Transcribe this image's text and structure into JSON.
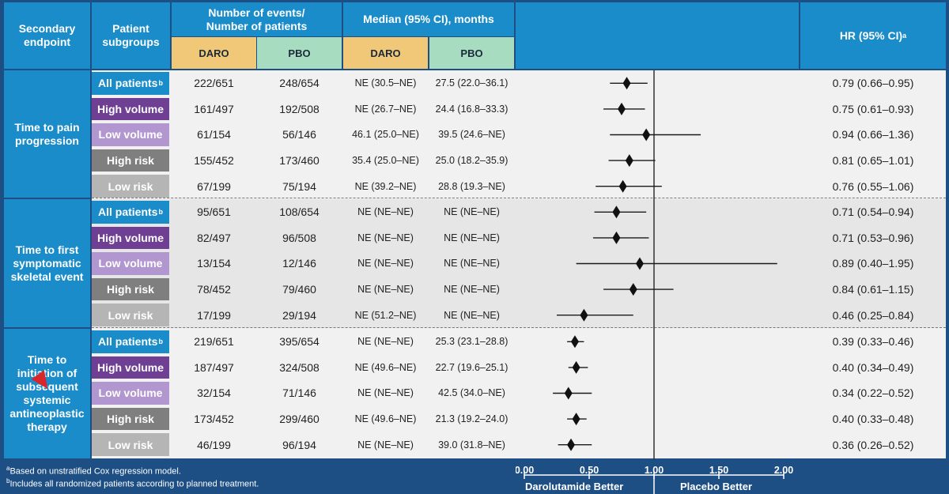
{
  "header": {
    "secondary_endpoint": "Secondary endpoint",
    "patient_subgroups": "Patient subgroups",
    "events_header": "Number of events/ Number of patients",
    "median_header": "Median (95% CI), months",
    "hr_header": "HR (95% CI)",
    "hr_footnote_mark": "a",
    "daro": "DARO",
    "pbo": "PBO"
  },
  "colors": {
    "header_blue": "#1a8cc9",
    "daro_yellow": "#f1c878",
    "pbo_green": "#a8dcc0",
    "all_patients": "#1a8cc9",
    "high_volume": "#6e3f92",
    "low_volume": "#b296d0",
    "high_risk": "#7f7f7f",
    "low_risk": "#b5b5b5"
  },
  "endpoints": [
    {
      "label": "Time to pain progression",
      "rows": [
        {
          "subgroup": "All patients",
          "sup": "b",
          "daro_events": "222/651",
          "pbo_events": "248/654",
          "daro_median": "NE (30.5–NE)",
          "pbo_median": "27.5 (22.0–36.1)",
          "hr_text": "0.79 (0.66–0.95)"
        },
        {
          "subgroup": "High volume",
          "sup": "",
          "daro_events": "161/497",
          "pbo_events": "192/508",
          "daro_median": "NE (26.7–NE)",
          "pbo_median": "24.4 (16.8–33.3)",
          "hr_text": "0.75 (0.61–0.93)"
        },
        {
          "subgroup": "Low volume",
          "sup": "",
          "daro_events": "61/154",
          "pbo_events": "56/146",
          "daro_median": "46.1 (25.0–NE)",
          "pbo_median": "39.5 (24.6–NE)",
          "hr_text": "0.94 (0.66–1.36)"
        },
        {
          "subgroup": "High risk",
          "sup": "",
          "daro_events": "155/452",
          "pbo_events": "173/460",
          "daro_median": "35.4 (25.0–NE)",
          "pbo_median": "25.0 (18.2–35.9)",
          "hr_text": "0.81 (0.65–1.01)"
        },
        {
          "subgroup": "Low risk",
          "sup": "",
          "daro_events": "67/199",
          "pbo_events": "75/194",
          "daro_median": "NE (39.2–NE)",
          "pbo_median": "28.8 (19.3–NE)",
          "hr_text": "0.76 (0.55–1.06)"
        }
      ]
    },
    {
      "label": "Time to first symptomatic skeletal event",
      "rows": [
        {
          "subgroup": "All patients",
          "sup": "b",
          "daro_events": "95/651",
          "pbo_events": "108/654",
          "daro_median": "NE (NE–NE)",
          "pbo_median": "NE (NE–NE)",
          "hr_text": "0.71 (0.54–0.94)"
        },
        {
          "subgroup": "High volume",
          "sup": "",
          "daro_events": "82/497",
          "pbo_events": "96/508",
          "daro_median": "NE (NE–NE)",
          "pbo_median": "NE (NE–NE)",
          "hr_text": "0.71 (0.53–0.96)"
        },
        {
          "subgroup": "Low volume",
          "sup": "",
          "daro_events": "13/154",
          "pbo_events": "12/146",
          "daro_median": "NE (NE–NE)",
          "pbo_median": "NE (NE–NE)",
          "hr_text": "0.89 (0.40–1.95)"
        },
        {
          "subgroup": "High risk",
          "sup": "",
          "daro_events": "78/452",
          "pbo_events": "79/460",
          "daro_median": "NE (NE–NE)",
          "pbo_median": "NE (NE–NE)",
          "hr_text": "0.84 (0.61–1.15)"
        },
        {
          "subgroup": "Low risk",
          "sup": "",
          "daro_events": "17/199",
          "pbo_events": "29/194",
          "daro_median": "NE (51.2–NE)",
          "pbo_median": "NE (NE–NE)",
          "hr_text": "0.46 (0.25–0.84)"
        }
      ]
    },
    {
      "label": "Time to initiation of subsequent systemic antineoplastic therapy",
      "rows": [
        {
          "subgroup": "All patients",
          "sup": "b",
          "daro_events": "219/651",
          "pbo_events": "395/654",
          "daro_median": "NE (NE–NE)",
          "pbo_median": "25.3 (23.1–28.8)",
          "hr_text": "0.39 (0.33–0.46)"
        },
        {
          "subgroup": "High volume",
          "sup": "",
          "daro_events": "187/497",
          "pbo_events": "324/508",
          "daro_median": "NE (49.6–NE)",
          "pbo_median": "22.7 (19.6–25.1)",
          "hr_text": "0.40 (0.34–0.49)"
        },
        {
          "subgroup": "Low volume",
          "sup": "",
          "daro_events": "32/154",
          "pbo_events": "71/146",
          "daro_median": "NE (NE–NE)",
          "pbo_median": "42.5 (34.0–NE)",
          "hr_text": "0.34 (0.22–0.52)"
        },
        {
          "subgroup": "High risk",
          "sup": "",
          "daro_events": "173/452",
          "pbo_events": "299/460",
          "daro_median": "NE (49.6–NE)",
          "pbo_median": "21.3 (19.2–24.0)",
          "hr_text": "0.40 (0.33–0.48)"
        },
        {
          "subgroup": "Low risk",
          "sup": "",
          "daro_events": "46/199",
          "pbo_events": "96/194",
          "daro_median": "NE (NE–NE)",
          "pbo_median": "39.0 (31.8–NE)",
          "hr_text": "0.36 (0.26–0.52)"
        }
      ]
    }
  ],
  "footnotes": {
    "a_mark": "a",
    "a_text": "Based on unstratified Cox regression model.",
    "b_mark": "b",
    "b_text": "Includes all randomized patients according to planned treatment."
  },
  "axis": {
    "left_label": "Darolutamide Better",
    "right_label": "Placebo Better"
  },
  "chart_data": {
    "type": "scatter",
    "subtype": "forest-plot",
    "xlim": [
      0,
      2
    ],
    "xticks": [
      "0.00",
      "0.50",
      "1.00",
      "1.50",
      "2.00"
    ],
    "reference_line": 1.0,
    "points": [
      {
        "hr": 0.79,
        "lo": 0.66,
        "hi": 0.95
      },
      {
        "hr": 0.75,
        "lo": 0.61,
        "hi": 0.93
      },
      {
        "hr": 0.94,
        "lo": 0.66,
        "hi": 1.36
      },
      {
        "hr": 0.81,
        "lo": 0.65,
        "hi": 1.01
      },
      {
        "hr": 0.76,
        "lo": 0.55,
        "hi": 1.06
      },
      {
        "hr": 0.71,
        "lo": 0.54,
        "hi": 0.94
      },
      {
        "hr": 0.71,
        "lo": 0.53,
        "hi": 0.96
      },
      {
        "hr": 0.89,
        "lo": 0.4,
        "hi": 1.95
      },
      {
        "hr": 0.84,
        "lo": 0.61,
        "hi": 1.15
      },
      {
        "hr": 0.46,
        "lo": 0.25,
        "hi": 0.84
      },
      {
        "hr": 0.39,
        "lo": 0.33,
        "hi": 0.46
      },
      {
        "hr": 0.4,
        "lo": 0.34,
        "hi": 0.49
      },
      {
        "hr": 0.34,
        "lo": 0.22,
        "hi": 0.52
      },
      {
        "hr": 0.4,
        "lo": 0.33,
        "hi": 0.48
      },
      {
        "hr": 0.36,
        "lo": 0.26,
        "hi": 0.52
      }
    ]
  }
}
